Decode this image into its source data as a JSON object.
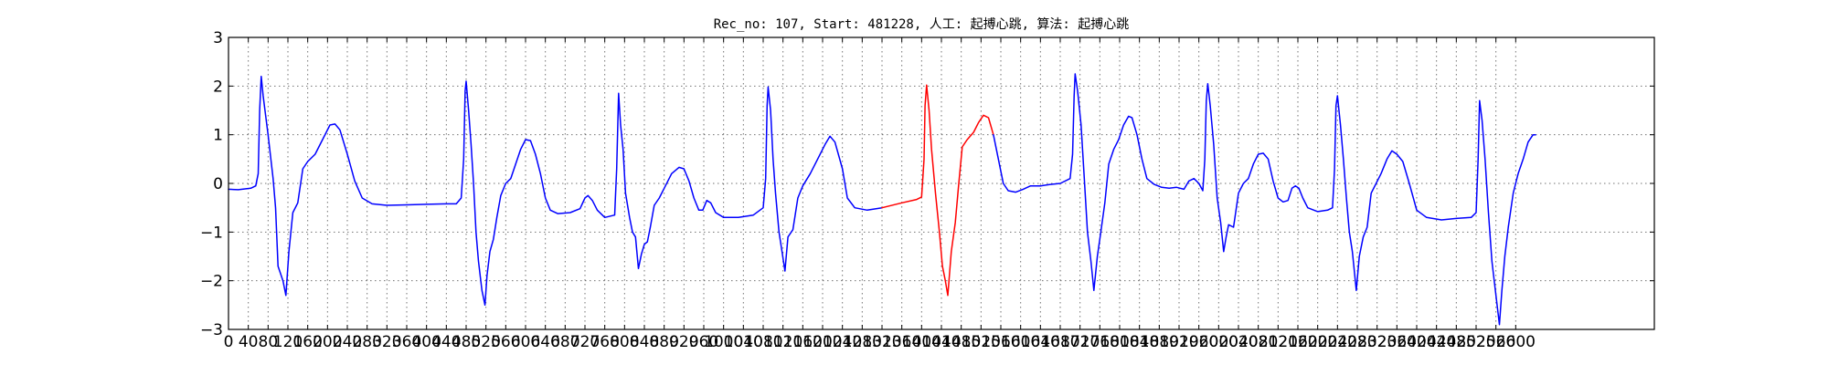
{
  "chart_data": {
    "type": "line",
    "title": "Rec_no: 107, Start: 481228, 人工: 起搏心跳, 算法: 起搏心跳",
    "xlabel": "",
    "ylabel": "",
    "xlim": [
      0,
      2880
    ],
    "ylim": [
      -3,
      3
    ],
    "grid": true,
    "x_ticks": [
      0,
      40,
      80,
      120,
      160,
      200,
      240,
      280,
      320,
      360,
      400,
      440,
      480,
      520,
      560,
      600,
      640,
      680,
      720,
      760,
      800,
      840,
      880,
      920,
      960,
      1000,
      1040,
      1080,
      1120,
      1160,
      1200,
      1240,
      1280,
      1320,
      1360,
      1400,
      1440,
      1480,
      1520,
      1560,
      1600,
      1640,
      1680,
      1720,
      1760,
      1800,
      1840,
      1880,
      1920,
      1960,
      2000,
      2040,
      2080,
      2120,
      2160,
      2200,
      2240,
      2280,
      2320,
      2360,
      2400,
      2440,
      2480,
      2520,
      2560,
      2600
    ],
    "x_tick_labels": [
      "0",
      "40",
      "80",
      "120",
      "160",
      "200",
      "240",
      "280",
      "320",
      "360",
      "400",
      "440",
      "480",
      "520",
      "560",
      "600",
      "640",
      "680",
      "720",
      "760",
      "800",
      "840",
      "880",
      "920",
      "960",
      "1000",
      "1040",
      "1080",
      "1120",
      "1160",
      "1200",
      "1240",
      "1280",
      "1320",
      "1360",
      "1400",
      "1440",
      "1480",
      "1520",
      "1560",
      "1600",
      "1640",
      "1680",
      "1720",
      "1760",
      "1800",
      "1840",
      "1880",
      "1920",
      "1960",
      "2000",
      "2040",
      "2080",
      "2120",
      "2160",
      "2200",
      "2240",
      "2280",
      "2320",
      "2360",
      "2400",
      "2440",
      "2480",
      "2520",
      "2560",
      "2600"
    ],
    "y_ticks": [
      -3,
      -2,
      -1,
      0,
      1,
      2,
      3
    ],
    "y_tick_labels": [
      "−3",
      "−2",
      "−1",
      "0",
      "1",
      "2",
      "3"
    ],
    "colors": {
      "normal": "#0000ff",
      "highlight": "#ff0000"
    },
    "series": [
      {
        "color": "#0000ff",
        "points": [
          [
            0,
            -0.12
          ],
          [
            20,
            -0.13
          ],
          [
            45,
            -0.1
          ],
          [
            55,
            -0.05
          ],
          [
            60,
            0.2
          ],
          [
            63,
            1.5
          ],
          [
            66,
            2.2
          ],
          [
            70,
            1.8
          ],
          [
            80,
            1.0
          ],
          [
            90,
            0.1
          ],
          [
            95,
            -0.5
          ],
          [
            100,
            -1.7
          ],
          [
            110,
            -2.0
          ],
          [
            116,
            -2.3
          ],
          [
            122,
            -1.4
          ],
          [
            130,
            -0.6
          ],
          [
            140,
            -0.4
          ],
          [
            150,
            0.3
          ],
          [
            160,
            0.45
          ],
          [
            175,
            0.6
          ],
          [
            190,
            0.9
          ],
          [
            205,
            1.2
          ],
          [
            215,
            1.22
          ],
          [
            225,
            1.1
          ],
          [
            240,
            0.6
          ],
          [
            255,
            0.05
          ],
          [
            270,
            -0.3
          ],
          [
            290,
            -0.42
          ],
          [
            320,
            -0.45
          ],
          [
            360,
            -0.44
          ],
          [
            400,
            -0.43
          ],
          [
            440,
            -0.42
          ],
          [
            460,
            -0.42
          ],
          [
            470,
            -0.3
          ],
          [
            475,
            0.5
          ],
          [
            478,
            1.9
          ],
          [
            480,
            2.1
          ],
          [
            485,
            1.5
          ],
          [
            490,
            0.8
          ],
          [
            495,
            0.0
          ],
          [
            500,
            -1.0
          ],
          [
            505,
            -1.6
          ],
          [
            512,
            -2.2
          ],
          [
            518,
            -2.5
          ],
          [
            522,
            -1.9
          ],
          [
            528,
            -1.4
          ],
          [
            535,
            -1.15
          ],
          [
            542,
            -0.7
          ],
          [
            550,
            -0.25
          ],
          [
            560,
            0.0
          ],
          [
            570,
            0.1
          ],
          [
            580,
            0.4
          ],
          [
            590,
            0.7
          ],
          [
            600,
            0.9
          ],
          [
            610,
            0.88
          ],
          [
            620,
            0.6
          ],
          [
            630,
            0.2
          ],
          [
            640,
            -0.3
          ],
          [
            650,
            -0.55
          ],
          [
            665,
            -0.62
          ],
          [
            690,
            -0.6
          ],
          [
            710,
            -0.52
          ],
          [
            720,
            -0.3
          ],
          [
            726,
            -0.25
          ],
          [
            735,
            -0.35
          ],
          [
            745,
            -0.55
          ],
          [
            760,
            -0.7
          ],
          [
            780,
            -0.65
          ],
          [
            784,
            0.3
          ],
          [
            788,
            1.85
          ],
          [
            792,
            1.2
          ],
          [
            797,
            0.7
          ],
          [
            802,
            -0.2
          ],
          [
            810,
            -0.7
          ],
          [
            816,
            -1.0
          ],
          [
            822,
            -1.1
          ],
          [
            828,
            -1.75
          ],
          [
            834,
            -1.45
          ],
          [
            840,
            -1.25
          ],
          [
            846,
            -1.2
          ],
          [
            852,
            -0.9
          ],
          [
            860,
            -0.45
          ],
          [
            870,
            -0.3
          ],
          [
            880,
            -0.1
          ],
          [
            895,
            0.2
          ],
          [
            910,
            0.33
          ],
          [
            920,
            0.3
          ],
          [
            930,
            0.05
          ],
          [
            940,
            -0.3
          ],
          [
            950,
            -0.55
          ],
          [
            958,
            -0.55
          ],
          [
            966,
            -0.35
          ],
          [
            974,
            -0.4
          ],
          [
            984,
            -0.6
          ],
          [
            1000,
            -0.7
          ],
          [
            1030,
            -0.7
          ],
          [
            1060,
            -0.65
          ],
          [
            1080,
            -0.5
          ],
          [
            1085,
            0.1
          ],
          [
            1088,
            1.6
          ],
          [
            1090,
            1.98
          ],
          [
            1095,
            1.5
          ],
          [
            1100,
            0.5
          ],
          [
            1105,
            -0.2
          ],
          [
            1112,
            -1.0
          ],
          [
            1118,
            -1.4
          ],
          [
            1124,
            -1.8
          ],
          [
            1130,
            -1.1
          ],
          [
            1140,
            -0.95
          ],
          [
            1150,
            -0.3
          ],
          [
            1160,
            -0.05
          ],
          [
            1175,
            0.2
          ],
          [
            1190,
            0.5
          ],
          [
            1205,
            0.8
          ],
          [
            1215,
            0.97
          ],
          [
            1225,
            0.85
          ],
          [
            1240,
            0.3
          ],
          [
            1250,
            -0.3
          ],
          [
            1265,
            -0.5
          ],
          [
            1290,
            -0.55
          ],
          [
            1320,
            -0.5
          ]
        ]
      },
      {
        "color": "#ff0000",
        "points": [
          [
            1320,
            -0.5
          ],
          [
            1360,
            -0.4
          ],
          [
            1390,
            -0.33
          ],
          [
            1400,
            -0.28
          ],
          [
            1405,
            0.5
          ],
          [
            1407,
            1.6
          ],
          [
            1410,
            2.02
          ],
          [
            1415,
            1.5
          ],
          [
            1420,
            0.7
          ],
          [
            1428,
            -0.2
          ],
          [
            1436,
            -1.0
          ],
          [
            1442,
            -1.7
          ],
          [
            1448,
            -2.0
          ],
          [
            1453,
            -2.3
          ],
          [
            1460,
            -1.4
          ],
          [
            1468,
            -0.8
          ],
          [
            1475,
            0.0
          ],
          [
            1482,
            0.75
          ],
          [
            1492,
            0.9
          ],
          [
            1505,
            1.05
          ],
          [
            1515,
            1.25
          ],
          [
            1525,
            1.4
          ],
          [
            1535,
            1.35
          ],
          [
            1545,
            1.0
          ]
        ]
      },
      {
        "color": "#0000ff",
        "points": [
          [
            1545,
            1.0
          ],
          [
            1555,
            0.5
          ],
          [
            1565,
            0.0
          ],
          [
            1575,
            -0.15
          ],
          [
            1590,
            -0.18
          ],
          [
            1605,
            -0.12
          ],
          [
            1620,
            -0.05
          ],
          [
            1640,
            -0.05
          ],
          [
            1660,
            -0.02
          ],
          [
            1680,
            0.0
          ],
          [
            1700,
            0.1
          ],
          [
            1705,
            0.6
          ],
          [
            1708,
            1.8
          ],
          [
            1710,
            2.25
          ],
          [
            1715,
            1.9
          ],
          [
            1722,
            1.2
          ],
          [
            1728,
            0.2
          ],
          [
            1735,
            -1.0
          ],
          [
            1742,
            -1.6
          ],
          [
            1748,
            -2.2
          ],
          [
            1755,
            -1.5
          ],
          [
            1762,
            -1.0
          ],
          [
            1770,
            -0.4
          ],
          [
            1778,
            0.4
          ],
          [
            1788,
            0.7
          ],
          [
            1798,
            0.9
          ],
          [
            1808,
            1.2
          ],
          [
            1818,
            1.38
          ],
          [
            1825,
            1.35
          ],
          [
            1835,
            1.0
          ],
          [
            1845,
            0.5
          ],
          [
            1855,
            0.1
          ],
          [
            1870,
            -0.02
          ],
          [
            1885,
            -0.08
          ],
          [
            1900,
            -0.1
          ],
          [
            1915,
            -0.08
          ],
          [
            1930,
            -0.12
          ],
          [
            1940,
            0.05
          ],
          [
            1950,
            0.1
          ],
          [
            1960,
            0.0
          ],
          [
            1968,
            -0.15
          ],
          [
            1972,
            0.5
          ],
          [
            1975,
            1.7
          ],
          [
            1978,
            2.05
          ],
          [
            1983,
            1.6
          ],
          [
            1990,
            0.8
          ],
          [
            1997,
            -0.3
          ],
          [
            2004,
            -0.8
          ],
          [
            2010,
            -1.4
          ],
          [
            2015,
            -1.1
          ],
          [
            2020,
            -0.85
          ],
          [
            2030,
            -0.9
          ],
          [
            2040,
            -0.2
          ],
          [
            2050,
            0.0
          ],
          [
            2060,
            0.1
          ],
          [
            2070,
            0.4
          ],
          [
            2080,
            0.6
          ],
          [
            2090,
            0.62
          ],
          [
            2100,
            0.5
          ],
          [
            2110,
            0.05
          ],
          [
            2120,
            -0.3
          ],
          [
            2130,
            -0.38
          ],
          [
            2140,
            -0.35
          ],
          [
            2148,
            -0.1
          ],
          [
            2155,
            -0.05
          ],
          [
            2162,
            -0.1
          ],
          [
            2170,
            -0.3
          ],
          [
            2180,
            -0.5
          ],
          [
            2200,
            -0.58
          ],
          [
            2220,
            -0.55
          ],
          [
            2230,
            -0.5
          ],
          [
            2234,
            0.3
          ],
          [
            2237,
            1.6
          ],
          [
            2240,
            1.8
          ],
          [
            2246,
            1.2
          ],
          [
            2252,
            0.5
          ],
          [
            2258,
            -0.3
          ],
          [
            2264,
            -1.0
          ],
          [
            2270,
            -1.4
          ],
          [
            2278,
            -2.2
          ],
          [
            2284,
            -1.5
          ],
          [
            2292,
            -1.1
          ],
          [
            2300,
            -0.9
          ],
          [
            2308,
            -0.2
          ],
          [
            2318,
            0.0
          ],
          [
            2328,
            0.2
          ],
          [
            2340,
            0.5
          ],
          [
            2350,
            0.67
          ],
          [
            2360,
            0.6
          ],
          [
            2372,
            0.45
          ],
          [
            2385,
            0.0
          ],
          [
            2400,
            -0.55
          ],
          [
            2420,
            -0.7
          ],
          [
            2450,
            -0.75
          ],
          [
            2480,
            -0.72
          ],
          [
            2510,
            -0.7
          ],
          [
            2520,
            -0.6
          ],
          [
            2524,
            0.5
          ],
          [
            2527,
            1.7
          ],
          [
            2532,
            1.3
          ],
          [
            2538,
            0.5
          ],
          [
            2545,
            -0.6
          ],
          [
            2552,
            -1.6
          ],
          [
            2560,
            -2.3
          ],
          [
            2567,
            -2.9
          ],
          [
            2572,
            -2.2
          ],
          [
            2578,
            -1.5
          ],
          [
            2585,
            -0.9
          ],
          [
            2595,
            -0.2
          ],
          [
            2605,
            0.2
          ],
          [
            2615,
            0.5
          ],
          [
            2625,
            0.85
          ],
          [
            2635,
            1.0
          ],
          [
            2640,
            1.0
          ]
        ]
      }
    ]
  }
}
